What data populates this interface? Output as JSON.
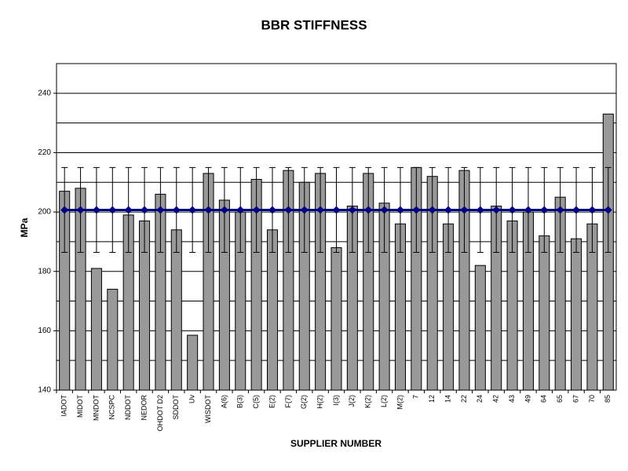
{
  "chart_data": {
    "type": "bar",
    "title": "BBR STIFFNESS",
    "xlabel": "SUPPLIER NUMBER",
    "ylabel": "MPa",
    "categories": [
      "IADOT",
      "MIDOT",
      "MNDOT",
      "NCSPC",
      "NDDOT",
      "NEDOR",
      "OHDOT D2",
      "SDDOT",
      "Uv",
      "WISDOT",
      "A(6)",
      "B(3)",
      "C(5)",
      "E(2)",
      "F(7)",
      "G(2)",
      "H(2)",
      "I(3)",
      "J(2)",
      "K(2)",
      "L(2)",
      "M(2)",
      "7",
      "12",
      "14",
      "22",
      "24",
      "42",
      "43",
      "49",
      "64",
      "65",
      "67",
      "70",
      "85"
    ],
    "series": [
      {
        "color": "#999999",
        "values": [
          207,
          208,
          181,
          174,
          199,
          197,
          206,
          194,
          158.5,
          213,
          204,
          200,
          211,
          194,
          214,
          210,
          213,
          188,
          202,
          213,
          203,
          196,
          215,
          212,
          196,
          214,
          182,
          202,
          197,
          200,
          192,
          205,
          191,
          196,
          233
        ]
      },
      {
        "color": "#000080",
        "error": 14.3,
        "values": [
          200.7,
          200.7,
          200.7,
          200.7,
          200.7,
          200.7,
          200.7,
          200.7,
          200.7,
          200.7,
          200.7,
          200.7,
          200.7,
          200.7,
          200.7,
          200.7,
          200.7,
          200.7,
          200.7,
          200.7,
          200.7,
          200.7,
          200.7,
          200.7,
          200.7,
          200.7,
          200.7,
          200.7,
          200.7,
          200.7,
          200.7,
          200.7,
          200.7,
          200.7,
          200.7
        ]
      }
    ],
    "ylim": [
      140,
      250
    ],
    "yticks": [
      140,
      160,
      180,
      200,
      220,
      240
    ],
    "ygrid": [
      150,
      160,
      170,
      180,
      190,
      200,
      210,
      220,
      230,
      240
    ]
  }
}
